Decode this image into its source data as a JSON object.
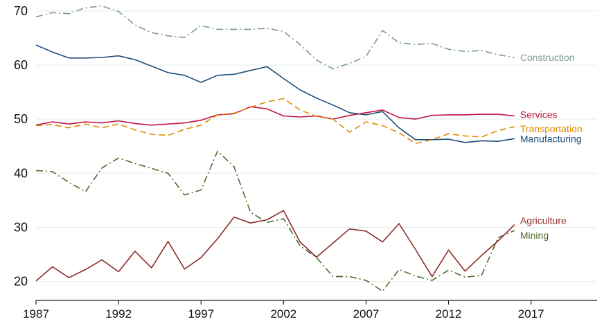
{
  "chart_data": {
    "type": "line",
    "title": "",
    "xlabel": "",
    "ylabel": "",
    "xlim": [
      1987,
      2021
    ],
    "ylim": [
      16.5,
      71
    ],
    "xticks": [
      "1987",
      "1992",
      "1997",
      "2002",
      "2007",
      "2012",
      "2017"
    ],
    "yticks": [
      "20",
      "30",
      "40",
      "50",
      "60",
      "70"
    ],
    "grid": "horizontal",
    "legend": "end-of-line labels",
    "series": [
      {
        "name": "Construction",
        "color": "#7a9a8e",
        "style": "dash-dot",
        "x": [
          1987,
          1988,
          1989,
          1990,
          1991,
          1992,
          1993,
          1994,
          1995,
          1996,
          1997,
          1998,
          1999,
          2000,
          2001,
          2002,
          2003,
          2004,
          2005,
          2006,
          2007,
          2008,
          2009,
          2010,
          2011,
          2012,
          2013,
          2014,
          2015,
          2016
        ],
        "values": [
          68.9,
          69.7,
          69.5,
          70.6,
          70.9,
          69.9,
          67.4,
          66.0,
          65.4,
          65.1,
          67.3,
          66.6,
          66.6,
          66.6,
          66.8,
          66.2,
          63.8,
          60.9,
          59.3,
          60.3,
          61.6,
          66.4,
          64.1,
          63.8,
          64.0,
          62.9,
          62.5,
          62.7,
          61.9,
          61.4
        ]
      },
      {
        "name": "Manufacturing",
        "color": "#1f4e79",
        "style": "solid",
        "x": [
          1987,
          1988,
          1989,
          1990,
          1991,
          1992,
          1993,
          1994,
          1995,
          1996,
          1997,
          1998,
          1999,
          2000,
          2001,
          2002,
          2003,
          2004,
          2005,
          2006,
          2007,
          2008,
          2009,
          2010,
          2011,
          2012,
          2013,
          2014,
          2015,
          2016
        ],
        "values": [
          63.7,
          62.4,
          61.3,
          61.3,
          61.4,
          61.7,
          61.0,
          59.8,
          58.6,
          58.1,
          56.8,
          58.1,
          58.3,
          59.0,
          59.7,
          57.5,
          55.4,
          53.9,
          52.6,
          51.2,
          50.8,
          51.4,
          48.4,
          46.2,
          46.2,
          46.3,
          45.7,
          46.0,
          45.9,
          46.4
        ]
      },
      {
        "name": "Services",
        "color": "#c0133f",
        "style": "solid",
        "x": [
          1987,
          1988,
          1989,
          1990,
          1991,
          1992,
          1993,
          1994,
          1995,
          1996,
          1997,
          1998,
          1999,
          2000,
          2001,
          2002,
          2003,
          2004,
          2005,
          2006,
          2007,
          2008,
          2009,
          2010,
          2011,
          2012,
          2013,
          2014,
          2015,
          2016
        ],
        "values": [
          48.9,
          49.5,
          49.1,
          49.5,
          49.3,
          49.7,
          49.2,
          48.9,
          49.1,
          49.3,
          49.8,
          50.8,
          51.0,
          52.3,
          51.9,
          50.6,
          50.4,
          50.6,
          50.0,
          50.7,
          51.2,
          51.7,
          50.3,
          50.0,
          50.7,
          50.8,
          50.8,
          50.9,
          50.9,
          50.6
        ]
      },
      {
        "name": "Transportation",
        "color": "#e08a00",
        "style": "dashed",
        "x": [
          1987,
          1988,
          1989,
          1990,
          1991,
          1992,
          1993,
          1994,
          1995,
          1996,
          1997,
          1998,
          1999,
          2000,
          2001,
          2002,
          2003,
          2004,
          2005,
          2006,
          2007,
          2008,
          2009,
          2010,
          2011,
          2012,
          2013,
          2014,
          2015,
          2016
        ],
        "values": [
          48.8,
          49.0,
          48.4,
          49.1,
          48.4,
          49.1,
          48.0,
          47.2,
          47.0,
          48.1,
          48.9,
          50.8,
          51.1,
          52.2,
          53.2,
          53.8,
          51.7,
          50.5,
          50.0,
          47.6,
          49.5,
          48.8,
          47.5,
          45.5,
          46.2,
          47.3,
          46.9,
          46.7,
          47.9,
          48.6
        ]
      },
      {
        "name": "Mining",
        "color": "#4e6b2c",
        "style": "dash-dot",
        "x": [
          1987,
          1988,
          1989,
          1990,
          1991,
          1992,
          1993,
          1994,
          1995,
          1996,
          1997,
          1998,
          1999,
          2000,
          2001,
          2002,
          2003,
          2004,
          2005,
          2006,
          2007,
          2008,
          2009,
          2010,
          2011,
          2012,
          2013,
          2014,
          2015,
          2016
        ],
        "values": [
          40.5,
          40.3,
          38.3,
          36.6,
          41.0,
          42.8,
          41.8,
          40.9,
          40.0,
          36.0,
          36.9,
          44.1,
          41.2,
          32.8,
          30.9,
          31.6,
          26.6,
          24.4,
          20.9,
          20.9,
          20.2,
          18.2,
          22.2,
          21.0,
          20.2,
          22.1,
          20.8,
          21.1,
          28.1,
          29.4
        ]
      },
      {
        "name": "Agriculture",
        "color": "#8e2a2a",
        "style": "solid",
        "x": [
          1987,
          1988,
          1989,
          1990,
          1991,
          1992,
          1993,
          1994,
          1995,
          1996,
          1997,
          1998,
          1999,
          2000,
          2001,
          2002,
          2003,
          2004,
          2005,
          2006,
          2007,
          2008,
          2009,
          2010,
          2011,
          2012,
          2013,
          2014,
          2015,
          2016
        ],
        "values": [
          20.1,
          22.7,
          20.7,
          22.2,
          24.0,
          21.8,
          25.6,
          22.5,
          27.4,
          22.3,
          24.4,
          27.9,
          31.9,
          30.8,
          31.4,
          33.1,
          27.3,
          24.5,
          27.1,
          29.7,
          29.3,
          27.3,
          30.7,
          25.9,
          20.9,
          25.8,
          21.9,
          24.8,
          27.5,
          30.5
        ]
      }
    ]
  }
}
